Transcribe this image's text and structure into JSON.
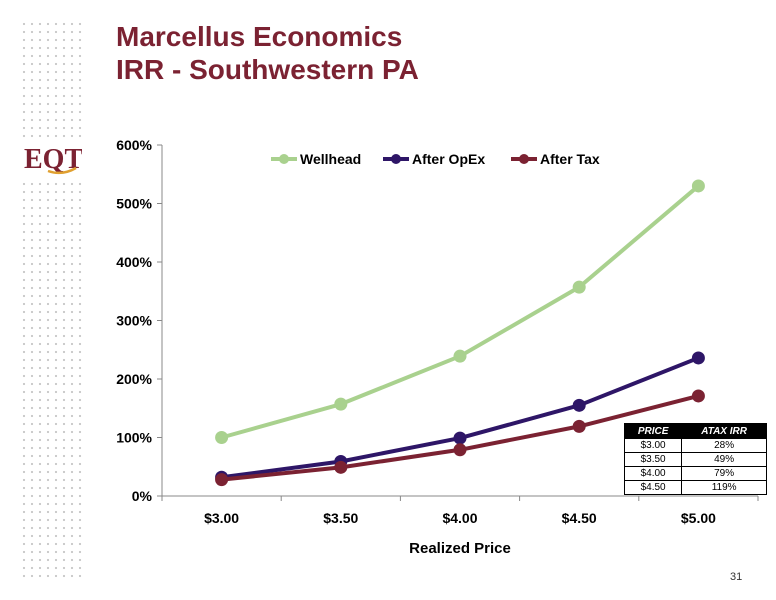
{
  "title": {
    "line1": "Marcellus Economics",
    "line2": "IRR - Southwestern PA"
  },
  "logo": {
    "text": "EQT"
  },
  "chart_data": {
    "type": "line",
    "title": "",
    "xlabel": "Realized Price",
    "ylabel": "",
    "categories": [
      "$3.00",
      "$3.50",
      "$4.00",
      "$4.50",
      "$5.00"
    ],
    "y_ticks": [
      "0%",
      "100%",
      "200%",
      "300%",
      "400%",
      "500%",
      "600%"
    ],
    "ylim": [
      0,
      600
    ],
    "grid": false,
    "legend_position": "top",
    "series": [
      {
        "name": "Wellhead",
        "color": "#a9d18e",
        "values": [
          100,
          157,
          239,
          357,
          530
        ]
      },
      {
        "name": "After OpEx",
        "color": "#2e1667",
        "values": [
          32,
          59,
          99,
          155,
          236
        ]
      },
      {
        "name": "After Tax",
        "color": "#7b2232",
        "values": [
          28,
          49,
          79,
          119,
          171
        ]
      }
    ]
  },
  "irr_table": {
    "headers": [
      "PRICE",
      "ATAX IRR"
    ],
    "rows": [
      [
        "$3.00",
        "28%"
      ],
      [
        "$3.50",
        "49%"
      ],
      [
        "$4.00",
        "79%"
      ],
      [
        "$4.50",
        "119%"
      ]
    ]
  },
  "page_number": "31"
}
